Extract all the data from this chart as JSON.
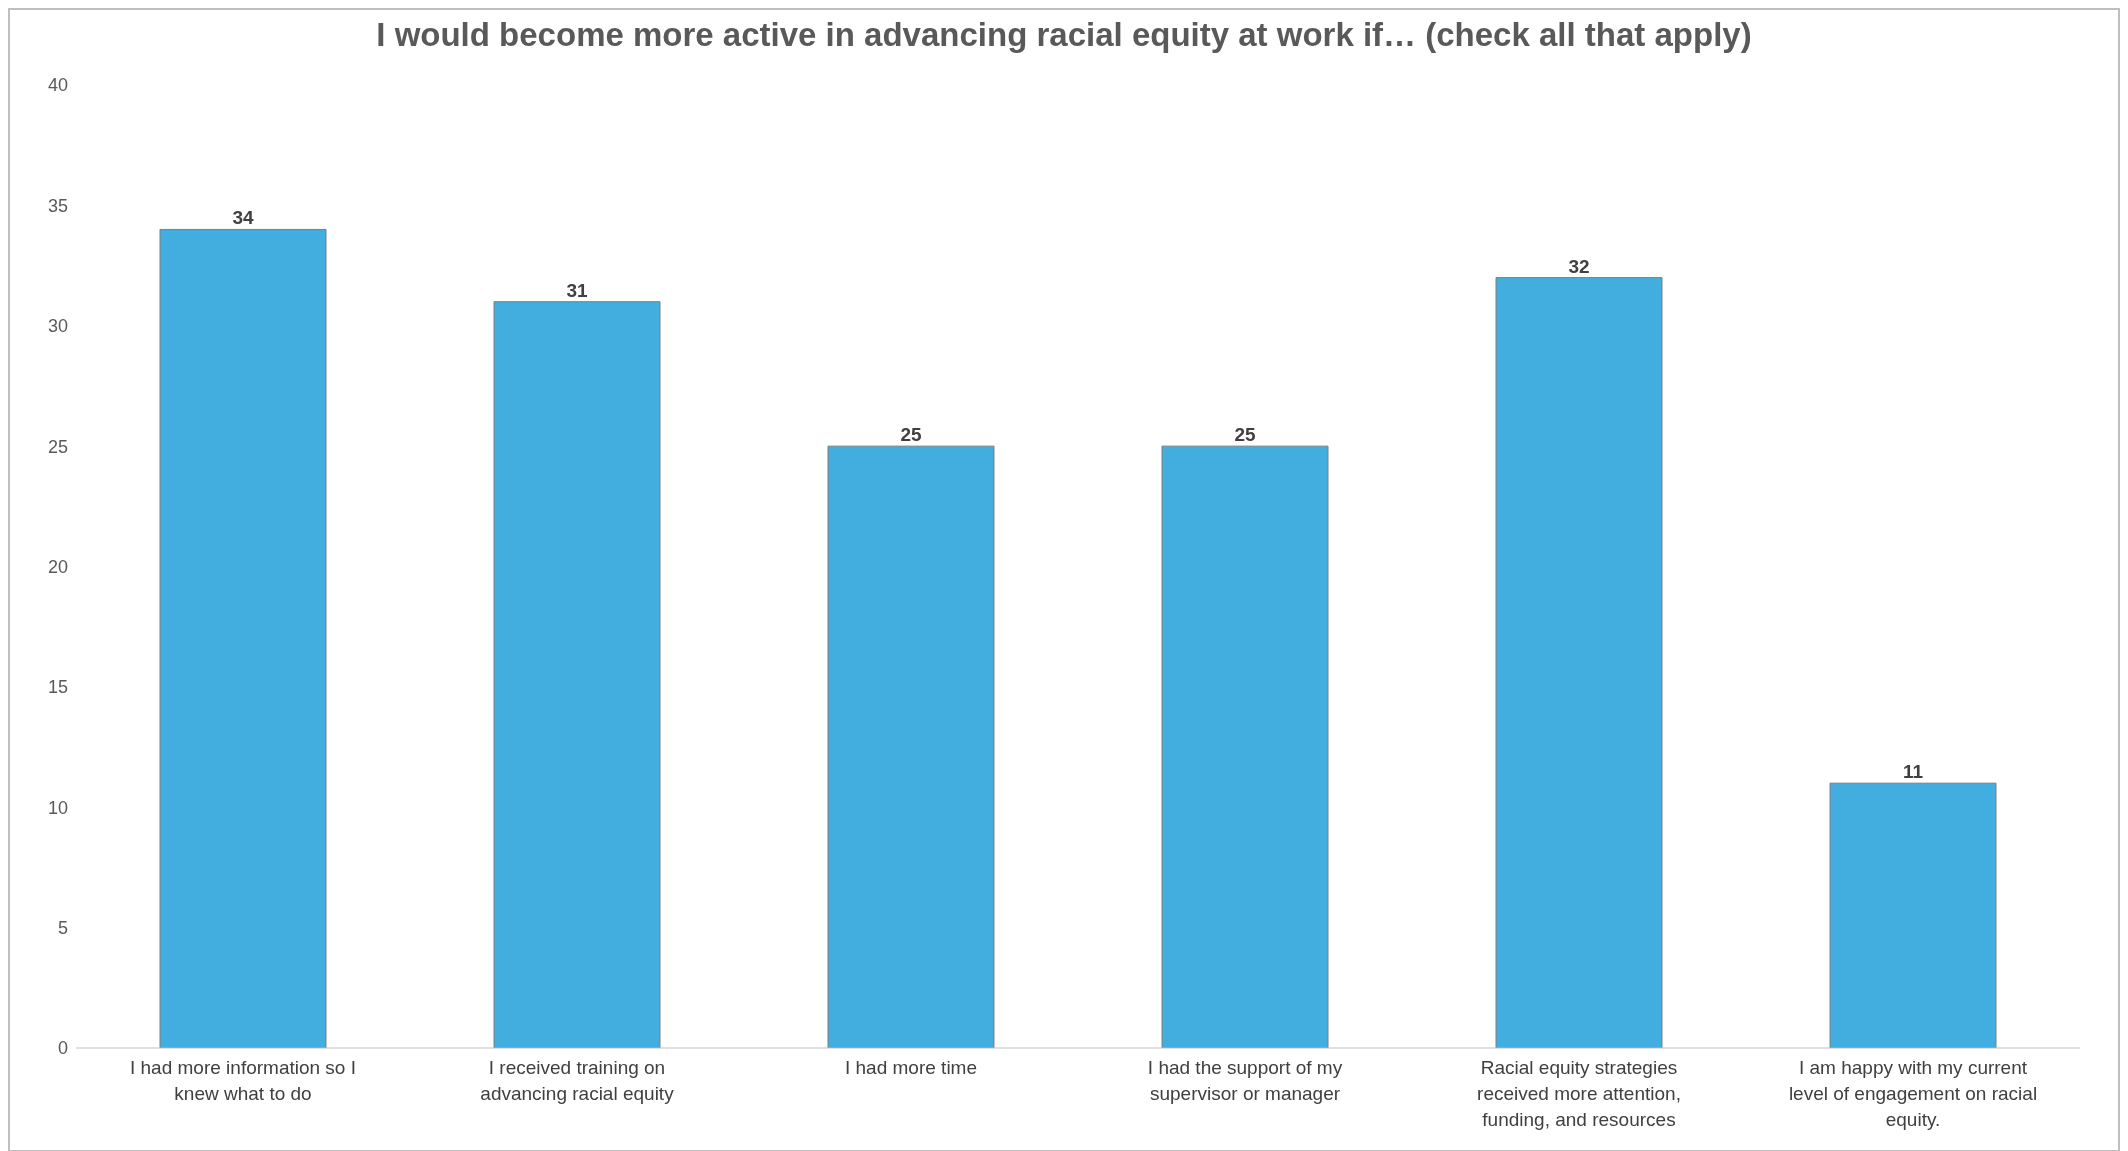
{
  "chart_data": {
    "type": "bar",
    "title": "I would become more active in advancing racial equity at work if… (check all that apply)",
    "categories": [
      "I had more information so I knew what to do",
      "I received training on advancing racial equity",
      "I had more time",
      "I had the support of my supervisor or manager",
      "Racial equity strategies received more attention, funding, and resources",
      "I am happy with my current level of engagement on racial equity."
    ],
    "values": [
      34,
      31,
      25,
      25,
      32,
      11
    ],
    "color": "#41aedf",
    "ylim": [
      0,
      40
    ],
    "yticks": [
      0,
      5,
      10,
      15,
      20,
      25,
      30,
      35,
      40
    ],
    "grid": false,
    "data_labels": true
  }
}
